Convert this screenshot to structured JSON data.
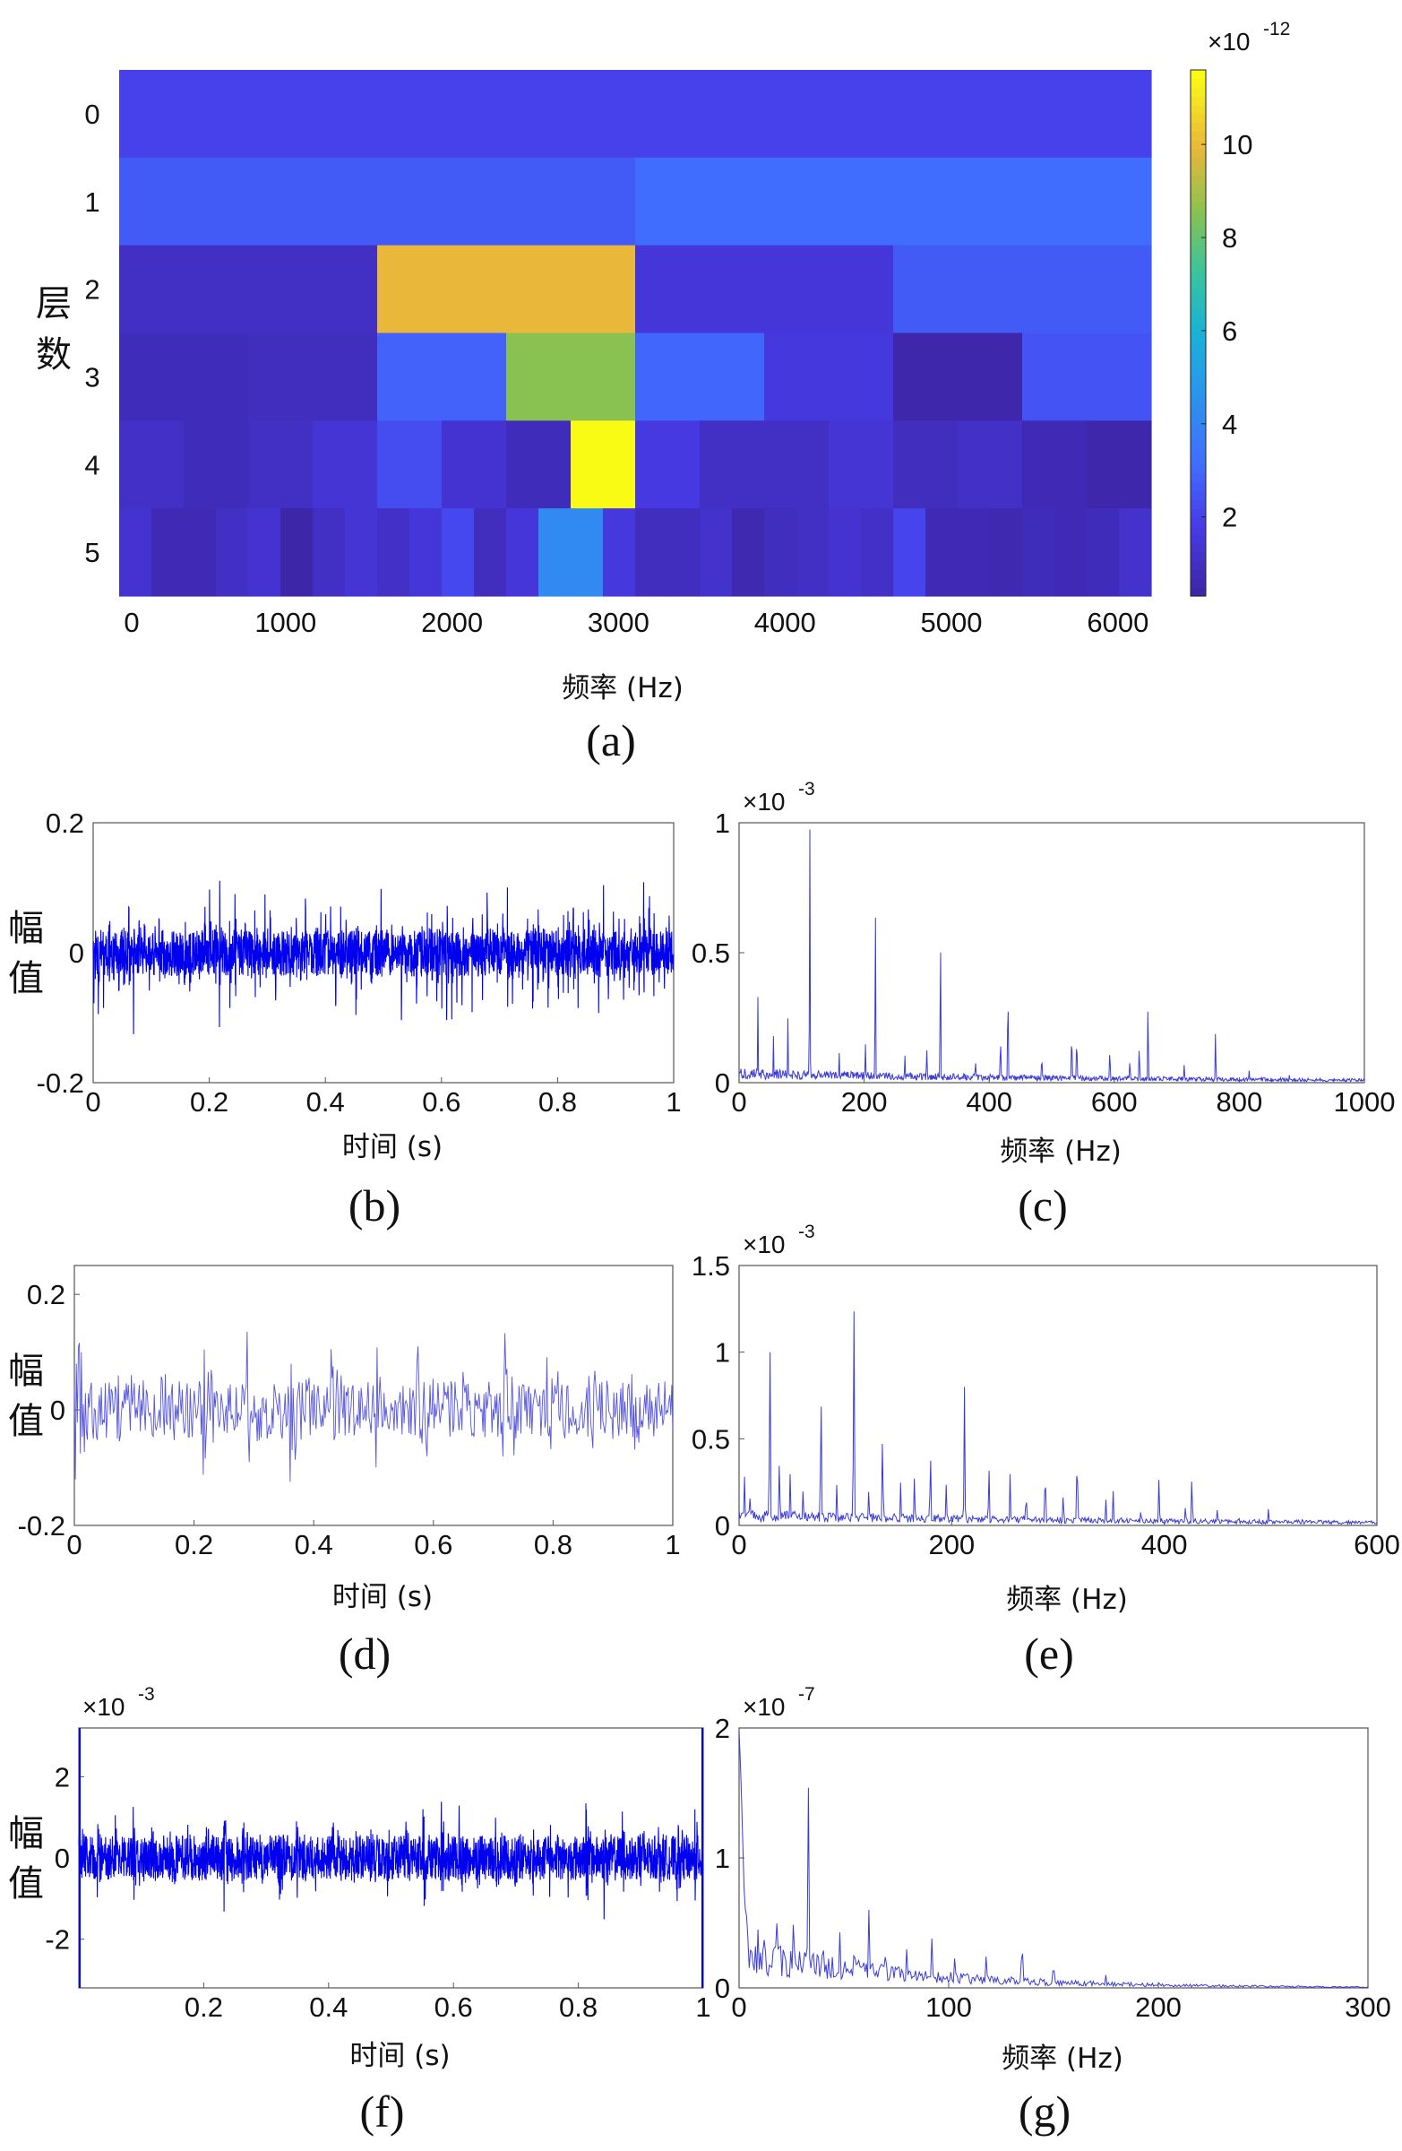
{
  "chart_data": [
    {
      "id": "a",
      "type": "heatmap",
      "caption": "(a)",
      "ylabel": "层\n数",
      "xlabel": "频率 (Hz)",
      "xlim": [
        0,
        6200
      ],
      "xticks": [
        "0",
        "1000",
        "2000",
        "3000",
        "4000",
        "5000",
        "6000"
      ],
      "yticks": [
        "0",
        "1",
        "2",
        "3",
        "4",
        "5"
      ],
      "colorbar": {
        "ticks": [
          "2",
          "4",
          "6",
          "8",
          "10"
        ],
        "range": [
          0.3,
          11.6
        ],
        "exponent": "-12"
      },
      "rows": [
        [
          1.9
        ],
        [
          2.6,
          3.1
        ],
        [
          0.9,
          10.0,
          1.4,
          2.6
        ],
        [
          0.7,
          0.8,
          2.8,
          8.6,
          2.9,
          1.5,
          0.4,
          2.4
        ],
        [
          1.0,
          0.7,
          0.9,
          1.3,
          2.2,
          1.2,
          0.7,
          11.6,
          1.6,
          0.9,
          0.9,
          1.3,
          0.8,
          1.0,
          0.6,
          0.4
        ],
        [
          1.2,
          0.6,
          0.6,
          0.9,
          1.2,
          0.3,
          0.9,
          1.3,
          1.0,
          1.4,
          2.1,
          0.8,
          1.4,
          4.2,
          4.2,
          1.5,
          0.8,
          0.8,
          1.1,
          0.5,
          0.8,
          0.9,
          1.2,
          1.0,
          2.0,
          0.6,
          0.6,
          0.5,
          0.7,
          0.6,
          0.7,
          1.1
        ]
      ]
    },
    {
      "id": "b",
      "type": "line",
      "caption": "(b)",
      "ylabel": "幅值",
      "xlabel": "时间 (s)",
      "xlim": [
        0,
        1
      ],
      "ylim": [
        -0.2,
        0.2
      ],
      "xticks": [
        "0",
        "0.2",
        "0.4",
        "0.6",
        "0.8",
        "1"
      ],
      "yticks": [
        "-0.2",
        "0",
        "0.2"
      ],
      "signal": {
        "n": 2400,
        "noise": 0.035,
        "impulse_period": 0.0087,
        "impulse_amp": 0.11,
        "impulse_max": 0.19,
        "seed": 11
      }
    },
    {
      "id": "c",
      "type": "line",
      "caption": "(c)",
      "xlabel": "频率 (Hz)",
      "xlim": [
        0,
        1000
      ],
      "ylim": [
        0,
        1.0
      ],
      "xticks": [
        "0",
        "200",
        "400",
        "600",
        "800",
        "1000"
      ],
      "yticks": [
        "0",
        "0.5",
        "1"
      ],
      "exponent": "-3",
      "spectrum": {
        "n": 1000,
        "noise": 0.045,
        "decay": 800,
        "seed": 21,
        "peaks": [
          [
            30,
            0.33
          ],
          [
            55,
            0.18
          ],
          [
            78,
            0.25
          ],
          [
            113,
            1.0
          ],
          [
            160,
            0.12
          ],
          [
            202,
            0.16
          ],
          [
            218,
            0.7
          ],
          [
            265,
            0.12
          ],
          [
            300,
            0.15
          ],
          [
            322,
            0.62
          ],
          [
            378,
            0.1
          ],
          [
            418,
            0.2
          ],
          [
            430,
            0.4
          ],
          [
            484,
            0.12
          ],
          [
            532,
            0.22
          ],
          [
            540,
            0.2
          ],
          [
            593,
            0.15
          ],
          [
            625,
            0.1
          ],
          [
            640,
            0.16
          ],
          [
            654,
            0.35
          ],
          [
            712,
            0.08
          ],
          [
            762,
            0.21
          ],
          [
            816,
            0.05
          ],
          [
            880,
            0.03
          ]
        ]
      }
    },
    {
      "id": "d",
      "type": "line",
      "caption": "(d)",
      "ylabel": "幅值",
      "xlabel": "时间 (s)",
      "xlim": [
        0,
        1
      ],
      "ylim": [
        -0.2,
        0.25
      ],
      "xticks": [
        "0",
        "0.2",
        "0.4",
        "0.6",
        "0.8",
        "1"
      ],
      "yticks": [
        "-0.2",
        "0",
        "0.2"
      ],
      "signal": {
        "n": 600,
        "noise": 0.05,
        "impulse_period": 0.0715,
        "impulse_amp": 0.16,
        "impulse_max": 0.235,
        "seed": 33
      }
    },
    {
      "id": "e",
      "type": "line",
      "caption": "(e)",
      "xlabel": "频率 (Hz)",
      "xlim": [
        0,
        600
      ],
      "ylim": [
        0,
        1.5
      ],
      "xticks": [
        "0",
        "200",
        "400",
        "600"
      ],
      "yticks": [
        "0",
        "0.5",
        "1",
        "1.5"
      ],
      "exponent": "-3",
      "spectrum": {
        "n": 700,
        "noise": 0.05,
        "decay": 500,
        "seed": 44,
        "peaks": [
          [
            5,
            0.3
          ],
          [
            10,
            0.2
          ],
          [
            29,
            1.1
          ],
          [
            38,
            0.4
          ],
          [
            48,
            0.3
          ],
          [
            60,
            0.2
          ],
          [
            77,
            0.82
          ],
          [
            92,
            0.25
          ],
          [
            108,
            1.32
          ],
          [
            122,
            0.2
          ],
          [
            135,
            0.55
          ],
          [
            152,
            0.25
          ],
          [
            165,
            0.3
          ],
          [
            180,
            0.45
          ],
          [
            195,
            0.25
          ],
          [
            212,
            0.8
          ],
          [
            235,
            0.35
          ],
          [
            255,
            0.3
          ],
          [
            270,
            0.2
          ],
          [
            288,
            0.35
          ],
          [
            305,
            0.2
          ],
          [
            318,
            0.45
          ],
          [
            345,
            0.15
          ],
          [
            352,
            0.2
          ],
          [
            378,
            0.1
          ],
          [
            395,
            0.28
          ],
          [
            420,
            0.12
          ],
          [
            426,
            0.3
          ],
          [
            450,
            0.1
          ],
          [
            470,
            0.06
          ],
          [
            498,
            0.1
          ],
          [
            530,
            0.05
          ],
          [
            560,
            0.04
          ]
        ]
      }
    },
    {
      "id": "f",
      "type": "line",
      "caption": "(f)",
      "ylabel": "幅值",
      "xlabel": "时间 (s)",
      "xlim": [
        0,
        1
      ],
      "ylim": [
        -3.2,
        3.2
      ],
      "xticks": [
        "0.2",
        "0.4",
        "0.6",
        "0.8",
        "1"
      ],
      "yticks": [
        "-2",
        "0",
        "2"
      ],
      "exponent": "-3",
      "signal": {
        "n": 2400,
        "noise": 0.55,
        "impulse_period": 0.029,
        "impulse_amp": 1.1,
        "impulse_max": 2.0,
        "edge_spike": 3.2,
        "seed": 55
      }
    },
    {
      "id": "g",
      "type": "line",
      "caption": "(g)",
      "xlabel": "频率 (Hz)",
      "xlim": [
        0,
        300
      ],
      "ylim": [
        0,
        2
      ],
      "xticks": [
        "0",
        "100",
        "200",
        "300"
      ],
      "yticks": [
        "0",
        "1",
        "2"
      ],
      "exponent": "-7",
      "spectrum": {
        "n": 500,
        "noise": 0.18,
        "decay": 80,
        "seed": 66,
        "start": 1.6,
        "peaks": [
          [
            9,
            0.45
          ],
          [
            18,
            0.5
          ],
          [
            26,
            0.55
          ],
          [
            33,
            1.58
          ],
          [
            40,
            0.45
          ],
          [
            48,
            0.45
          ],
          [
            55,
            0.4
          ],
          [
            62,
            0.62
          ],
          [
            70,
            0.35
          ],
          [
            80,
            0.3
          ],
          [
            92,
            0.38
          ],
          [
            103,
            0.28
          ],
          [
            118,
            0.28
          ],
          [
            135,
            0.4
          ],
          [
            150,
            0.22
          ],
          [
            175,
            0.1
          ],
          [
            200,
            0.05
          ]
        ]
      }
    }
  ]
}
